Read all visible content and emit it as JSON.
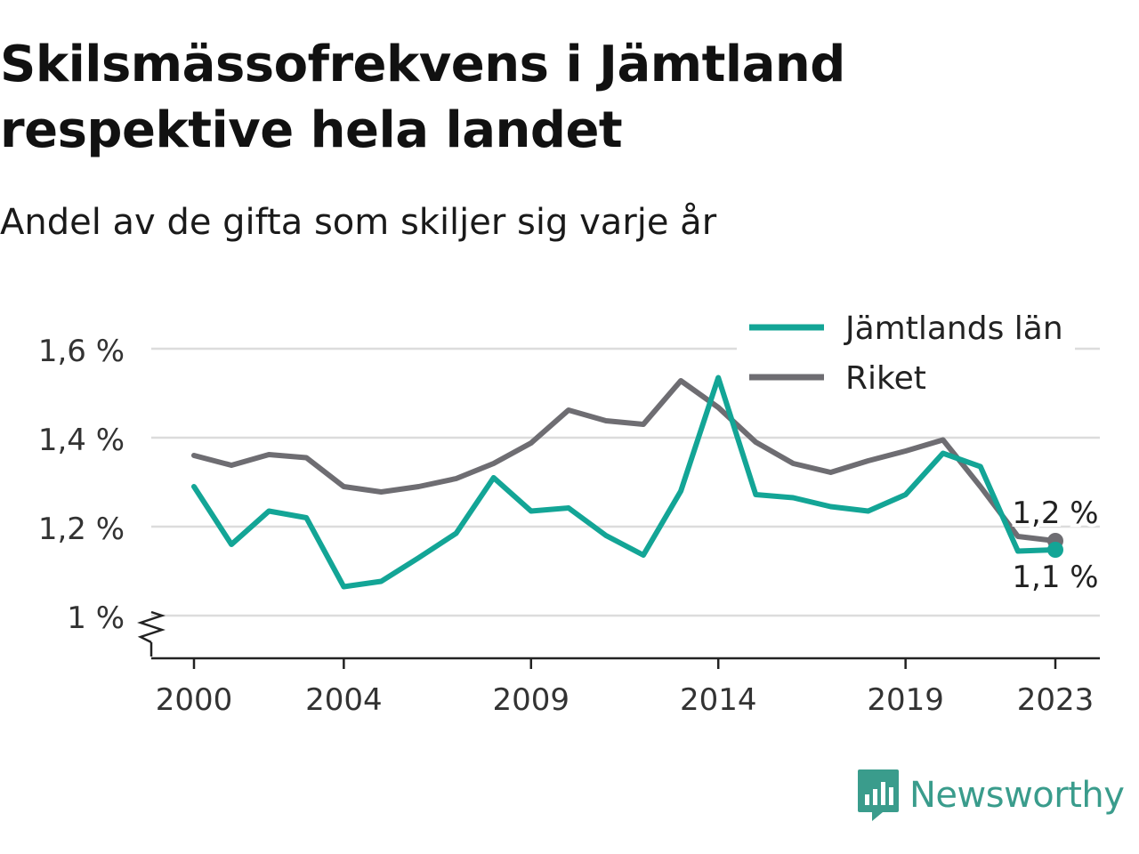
{
  "title": "Skilsmässofrekvens i Jämtland respektive hela landet",
  "subtitle": "Andel av de gifta som skiljer sig varje år",
  "brand": {
    "name": "Newsworthy",
    "icon": "newsworthy-logo-icon",
    "color": "#3a9c8c"
  },
  "chart_data": {
    "type": "line",
    "x": [
      2000,
      2001,
      2002,
      2003,
      2004,
      2005,
      2006,
      2007,
      2008,
      2009,
      2010,
      2011,
      2012,
      2013,
      2014,
      2015,
      2016,
      2017,
      2018,
      2019,
      2020,
      2021,
      2022,
      2023
    ],
    "x_ticks": [
      2000,
      2004,
      2009,
      2014,
      2019,
      2023
    ],
    "x_tick_labels": [
      "2000",
      "2004",
      "2009",
      "2014",
      "2019",
      "2023"
    ],
    "y_ticks": [
      1.0,
      1.2,
      1.4,
      1.6
    ],
    "y_tick_labels": [
      "1 %",
      "1,2 %",
      "1,4 %",
      "1,6 %"
    ],
    "ylim": [
      0.91,
      1.62
    ],
    "y_axis_break": true,
    "grid": true,
    "legend_position": "top-right",
    "series": [
      {
        "name": "Jämtlands län",
        "color": "#13a596",
        "values": [
          1.29,
          1.16,
          1.235,
          1.22,
          1.065,
          1.077,
          1.13,
          1.185,
          1.31,
          1.235,
          1.242,
          1.18,
          1.136,
          1.28,
          1.535,
          1.272,
          1.265,
          1.245,
          1.235,
          1.272,
          1.365,
          1.335,
          1.145,
          1.148
        ],
        "end_label": "1,1 %"
      },
      {
        "name": "Riket",
        "color": "#6e6d72",
        "values": [
          1.36,
          1.338,
          1.362,
          1.355,
          1.29,
          1.278,
          1.29,
          1.308,
          1.342,
          1.388,
          1.462,
          1.438,
          1.43,
          1.528,
          1.468,
          1.39,
          1.342,
          1.322,
          1.348,
          1.37,
          1.395,
          1.29,
          1.178,
          1.168
        ],
        "end_label": "1,2 %"
      }
    ]
  }
}
